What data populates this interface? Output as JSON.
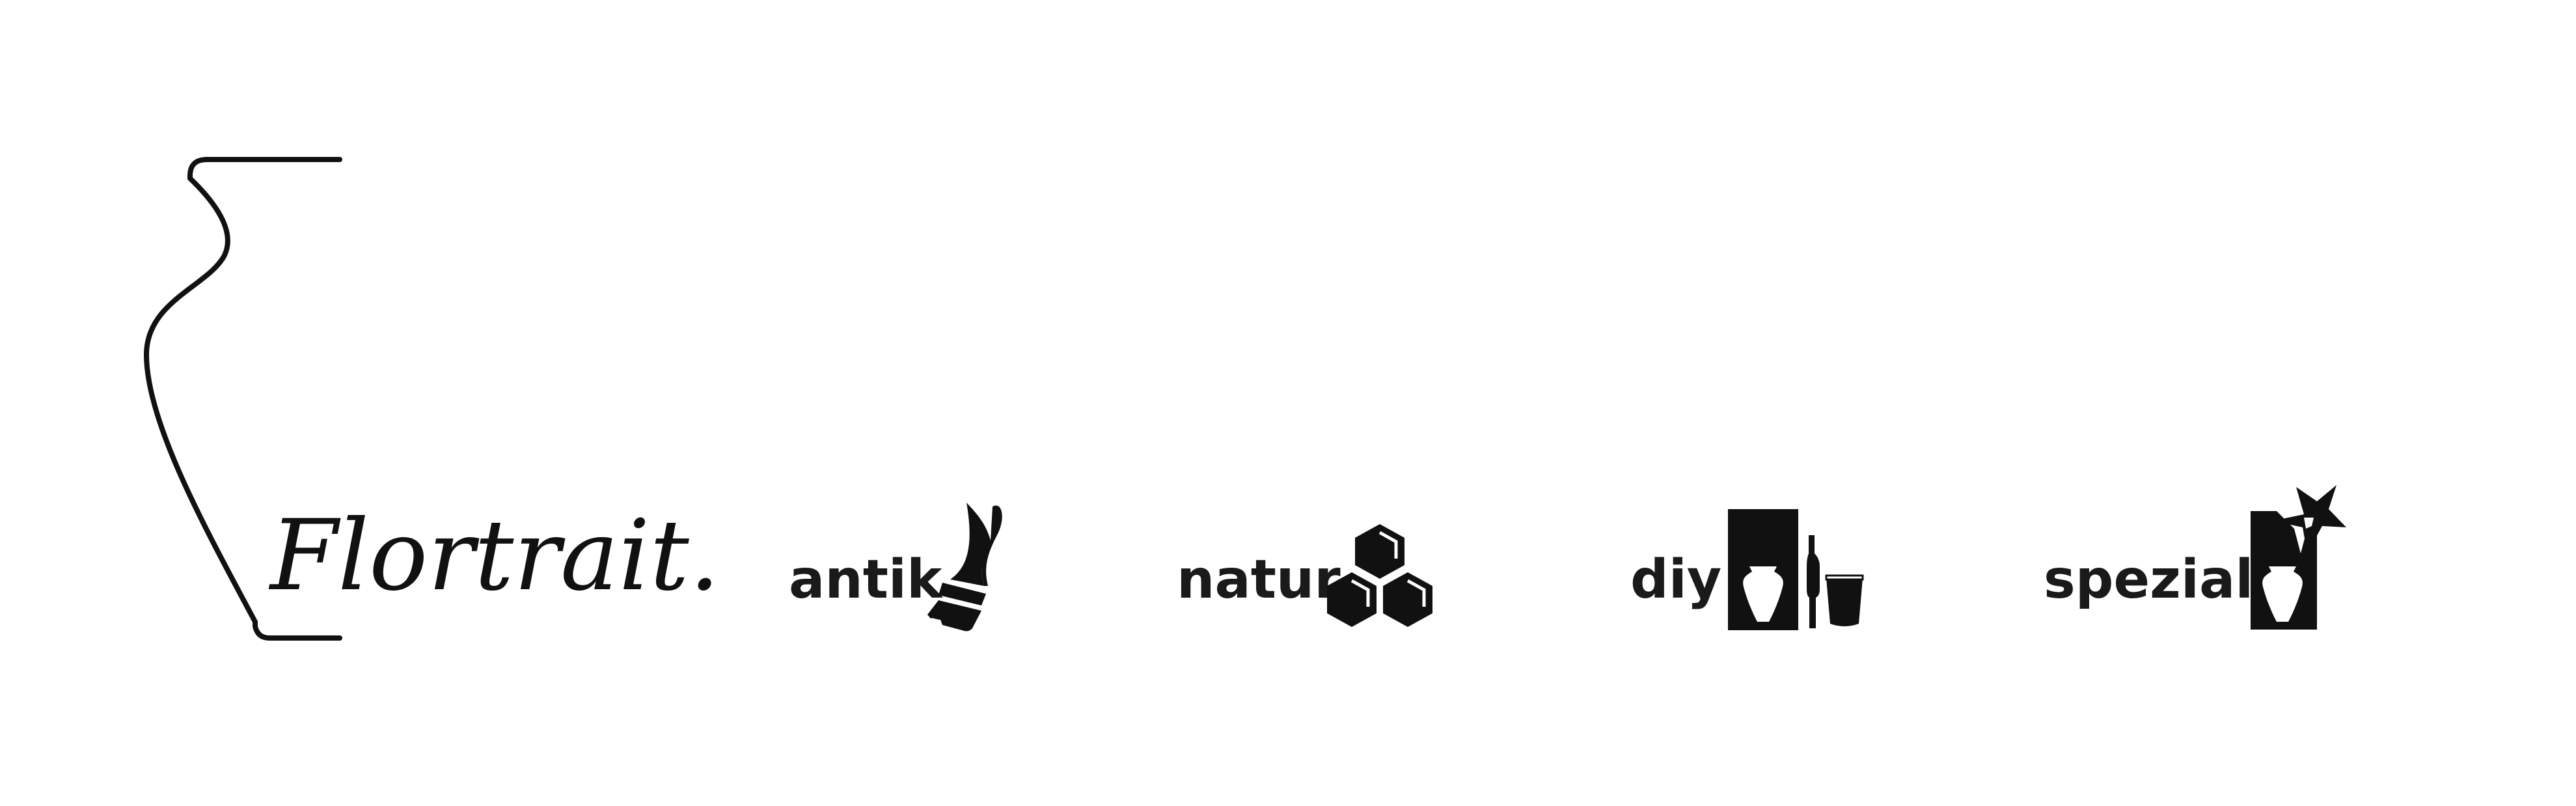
{
  "logo": {
    "wordmark": "Flortrait.",
    "vase_icon": "vase-outline-icon"
  },
  "categories": [
    {
      "label": "antik",
      "icon": "paintbrush-icon"
    },
    {
      "label": "natur",
      "icon": "honeycomb-icon"
    },
    {
      "label": "diy",
      "icon": "vase-and-tools-icon"
    },
    {
      "label": "spezial",
      "icon": "vase-star-icon"
    }
  ],
  "colors": {
    "ink": "#111111",
    "background": "#ffffff"
  }
}
